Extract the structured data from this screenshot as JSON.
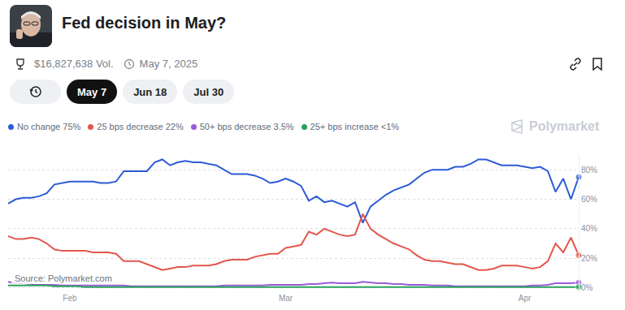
{
  "header": {
    "title": "Fed decision in May?",
    "volume": "$16,827,638 Vol.",
    "date": "May 7, 2025",
    "tabs": [
      "May 7",
      "Jun 18",
      "Jul 30"
    ],
    "active_tab": "May 7",
    "watermark": "Polymarket",
    "source": "Source: Polymarket.com"
  },
  "chart_data": {
    "type": "line",
    "categories": [
      null,
      null,
      null,
      null,
      null,
      null,
      null,
      null,
      "Feb",
      null,
      null,
      null,
      null,
      null,
      null,
      null,
      null,
      null,
      null,
      null,
      null,
      null,
      null,
      null,
      null,
      null,
      null,
      null,
      null,
      null,
      null,
      null,
      null,
      null,
      null,
      null,
      "Mar",
      null,
      null,
      null,
      null,
      null,
      null,
      null,
      null,
      null,
      null,
      null,
      null,
      null,
      null,
      null,
      null,
      null,
      null,
      null,
      null,
      null,
      null,
      null,
      null,
      null,
      null,
      null,
      null,
      null,
      null,
      "Apr",
      null,
      null,
      null,
      null,
      null,
      null,
      null
    ],
    "series": [
      {
        "name": "No change 75%",
        "color": "#2d5bd7",
        "values": [
          57,
          60,
          61,
          61,
          62,
          64,
          70,
          71,
          72,
          72,
          72,
          72,
          71,
          71,
          72,
          79,
          79,
          79,
          79,
          85,
          87,
          83,
          85,
          86,
          85,
          85,
          84,
          83,
          80,
          77,
          77,
          77,
          76,
          74,
          71,
          72,
          74,
          72,
          69,
          59,
          62,
          58,
          59,
          57,
          55,
          58,
          44,
          55,
          59,
          63,
          66,
          68,
          70,
          74,
          78,
          80,
          80,
          80,
          82,
          82,
          84,
          87,
          87,
          85,
          83,
          83,
          83,
          82,
          81,
          82,
          79,
          65,
          74,
          60,
          75
        ]
      },
      {
        "name": "25 bps decrease 22%",
        "color": "#e2574c",
        "values": [
          35,
          33,
          33,
          34,
          33,
          30,
          26,
          25,
          25,
          25,
          25,
          24,
          24,
          24,
          23,
          18,
          18,
          18,
          16,
          14,
          12,
          13,
          14,
          14,
          15,
          15,
          15,
          16,
          18,
          19,
          19,
          19,
          21,
          22,
          23,
          23,
          27,
          28,
          29,
          38,
          36,
          40,
          38,
          36,
          35,
          36,
          50,
          40,
          36,
          33,
          30,
          28,
          26,
          22,
          19,
          18,
          18,
          17,
          16,
          16,
          14,
          12,
          12,
          13,
          15,
          15,
          15,
          14,
          13,
          14,
          18,
          30,
          24,
          34,
          22
        ]
      },
      {
        "name": "50+ bps decrease 3.5%",
        "color": "#9b5bd6",
        "values": [
          4,
          3,
          3,
          2.5,
          2,
          2,
          2,
          1.5,
          1.5,
          1.5,
          1.5,
          1.5,
          1.5,
          1.5,
          1.5,
          1.5,
          1,
          1,
          1,
          1,
          1,
          1,
          1,
          1,
          1,
          1,
          1,
          1,
          1.5,
          1.5,
          1.5,
          1.5,
          1.5,
          1.5,
          2,
          2,
          2,
          2,
          2,
          2.5,
          2.5,
          3,
          3.5,
          3,
          3,
          3,
          4,
          3.5,
          3,
          3,
          2.5,
          2.5,
          2,
          2,
          2,
          1.5,
          1.5,
          1.5,
          1,
          1,
          1,
          1,
          1,
          1,
          1,
          1,
          1,
          1,
          1.5,
          1.5,
          2,
          3,
          3,
          3,
          3.5
        ]
      },
      {
        "name": "25+ bps increase <1%",
        "color": "#2aa35c",
        "values": [
          1.5,
          1.5,
          1.5,
          1.5,
          1.5,
          1.5,
          1,
          1,
          1,
          1,
          0.5,
          0.5,
          0.5,
          0.5,
          0.5,
          0.5,
          0.5,
          0.5,
          0.5,
          0.5,
          0.5,
          0.5,
          0.5,
          0.5,
          0.5,
          0.5,
          0.5,
          0.5,
          0.5,
          0.5,
          0.5,
          0.5,
          0.5,
          0.5,
          0.5,
          0.5,
          0.5,
          0.5,
          0.5,
          0.5,
          0.5,
          0.5,
          0.5,
          0.5,
          0.5,
          0.5,
          0.5,
          0.5,
          0.5,
          0.5,
          0.5,
          0.5,
          0.5,
          0.5,
          0.5,
          0.5,
          0.5,
          0.5,
          0.5,
          0.5,
          0.5,
          0.5,
          0.5,
          0.5,
          0.5,
          0.5,
          0.5,
          0.5,
          0.5,
          0.5,
          0.5,
          0.5,
          0.5,
          0.5,
          0.5
        ]
      }
    ],
    "ylim": [
      -3,
      90
    ],
    "yticks": [
      {
        "value": 0,
        "label": "0%"
      },
      {
        "value": 20,
        "label": "20%"
      },
      {
        "value": 40,
        "label": "40%"
      },
      {
        "value": 60,
        "label": "60%"
      },
      {
        "value": 80,
        "label": "80%"
      }
    ],
    "grid": true
  }
}
